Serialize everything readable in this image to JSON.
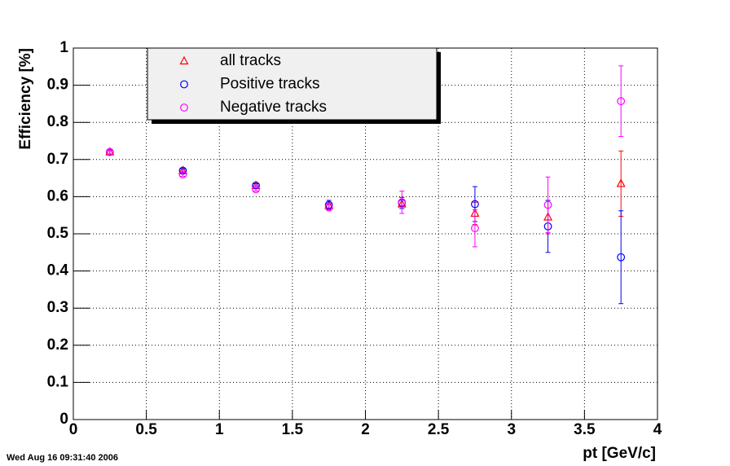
{
  "chart_data": {
    "type": "scatter",
    "x_label": "pt [GeV/c]",
    "y_label": "Efficiency [%]",
    "timestamp": "Wed Aug 16 09:31:40 2006",
    "x": [
      0.25,
      0.75,
      1.25,
      1.75,
      2.25,
      2.75,
      3.25,
      3.75
    ],
    "series": [
      {
        "name": "all tracks",
        "color": "#ff0000",
        "marker": "triangle",
        "values": [
          0.72,
          0.67,
          0.63,
          0.575,
          0.58,
          0.555,
          0.545,
          0.635
        ],
        "errors": [
          0.005,
          0.005,
          0.005,
          0.008,
          0.012,
          0.03,
          0.045,
          0.088
        ]
      },
      {
        "name": "Positive tracks",
        "color": "#0000ff",
        "marker": "circle",
        "values": [
          0.72,
          0.67,
          0.63,
          0.578,
          0.583,
          0.58,
          0.52,
          0.437
        ],
        "errors": [
          0.005,
          0.005,
          0.005,
          0.012,
          0.015,
          0.047,
          0.07,
          0.125
        ]
      },
      {
        "name": "Negative tracks",
        "color": "#ff00ff",
        "marker": "circle",
        "values": [
          0.72,
          0.66,
          0.62,
          0.572,
          0.585,
          0.515,
          0.578,
          0.857
        ],
        "errors": [
          0.005,
          0.005,
          0.005,
          0.01,
          0.03,
          0.05,
          0.075,
          0.095
        ]
      }
    ],
    "xlim": [
      0,
      4
    ],
    "xticks": [
      0,
      0.5,
      1,
      1.5,
      2,
      2.5,
      3,
      3.5,
      4
    ],
    "ylim": [
      0,
      1
    ],
    "yticks": [
      0,
      0.1,
      0.2,
      0.3,
      0.4,
      0.5,
      0.6,
      0.7,
      0.8,
      0.9,
      1
    ],
    "grid": true
  }
}
